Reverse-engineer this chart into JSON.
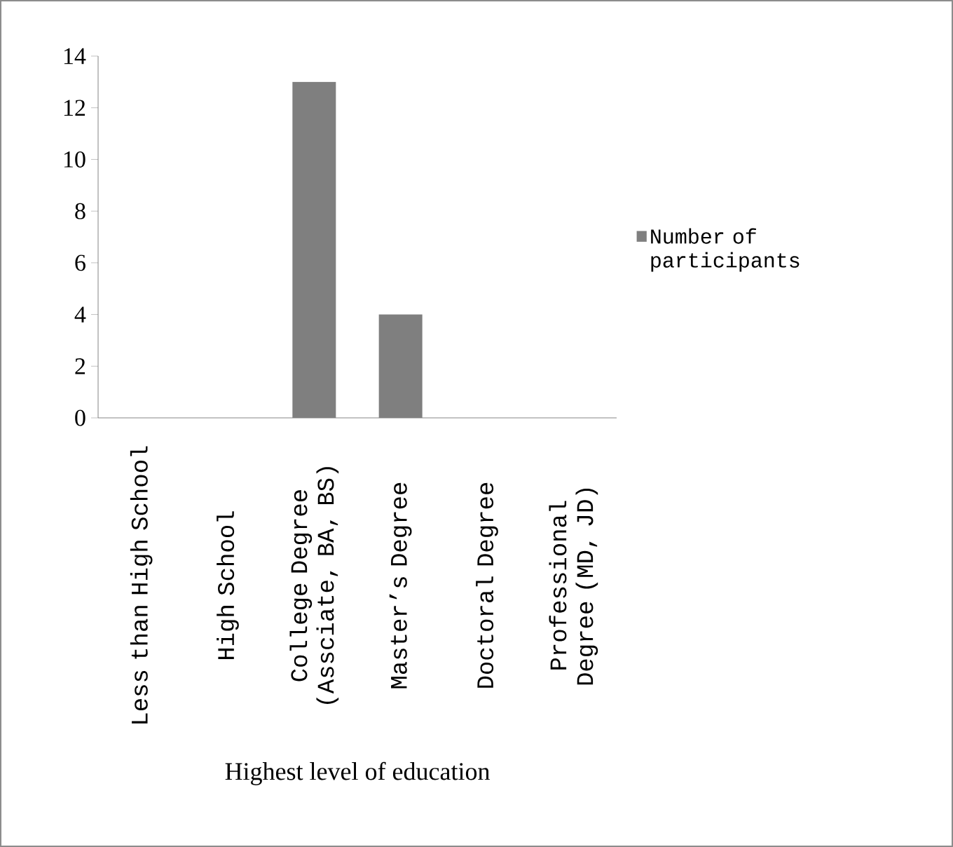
{
  "chart_data": {
    "type": "bar",
    "xlabel": "Highest level of education",
    "categories": [
      "Less than High School",
      "High School",
      "College Degree (Assciate, BA, BS)",
      "Master’s Degree",
      "Doctoral Degree",
      "Professional Degree (MD, JD)"
    ],
    "series": [
      {
        "name": "Number of participants",
        "color": "#7f7f7f",
        "values": [
          0,
          0,
          13,
          4,
          0,
          0
        ]
      }
    ],
    "ylim": [
      0,
      14
    ],
    "yticks": [
      0,
      2,
      4,
      6,
      8,
      10,
      12,
      14
    ],
    "legend": "right"
  }
}
